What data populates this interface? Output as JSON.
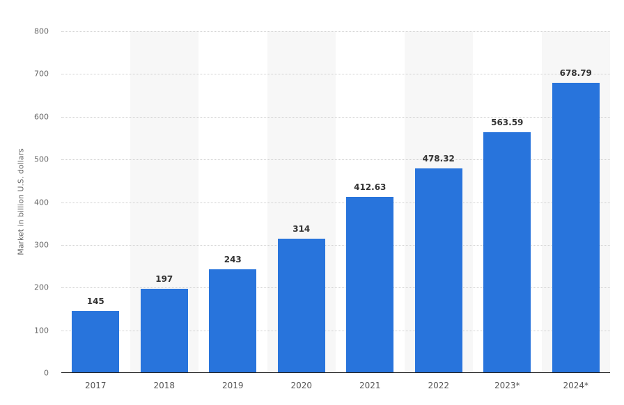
{
  "chart_data": {
    "type": "bar",
    "title": "",
    "xlabel": "",
    "ylabel": "Market in billion U.S. dollars",
    "categories": [
      "2017",
      "2018",
      "2019",
      "2020",
      "2021",
      "2022",
      "2023*",
      "2024*"
    ],
    "values": [
      145,
      197,
      243,
      314,
      412.63,
      478.32,
      563.59,
      678.79
    ],
    "value_labels": [
      "145",
      "197",
      "243",
      "314",
      "412.63",
      "478.32",
      "563.59",
      "678.79"
    ],
    "ylim": [
      0,
      800
    ],
    "yticks": [
      0,
      100,
      200,
      300,
      400,
      500,
      600,
      700,
      800
    ],
    "grid": true,
    "legend": null,
    "bar_color": "#2874dc"
  }
}
